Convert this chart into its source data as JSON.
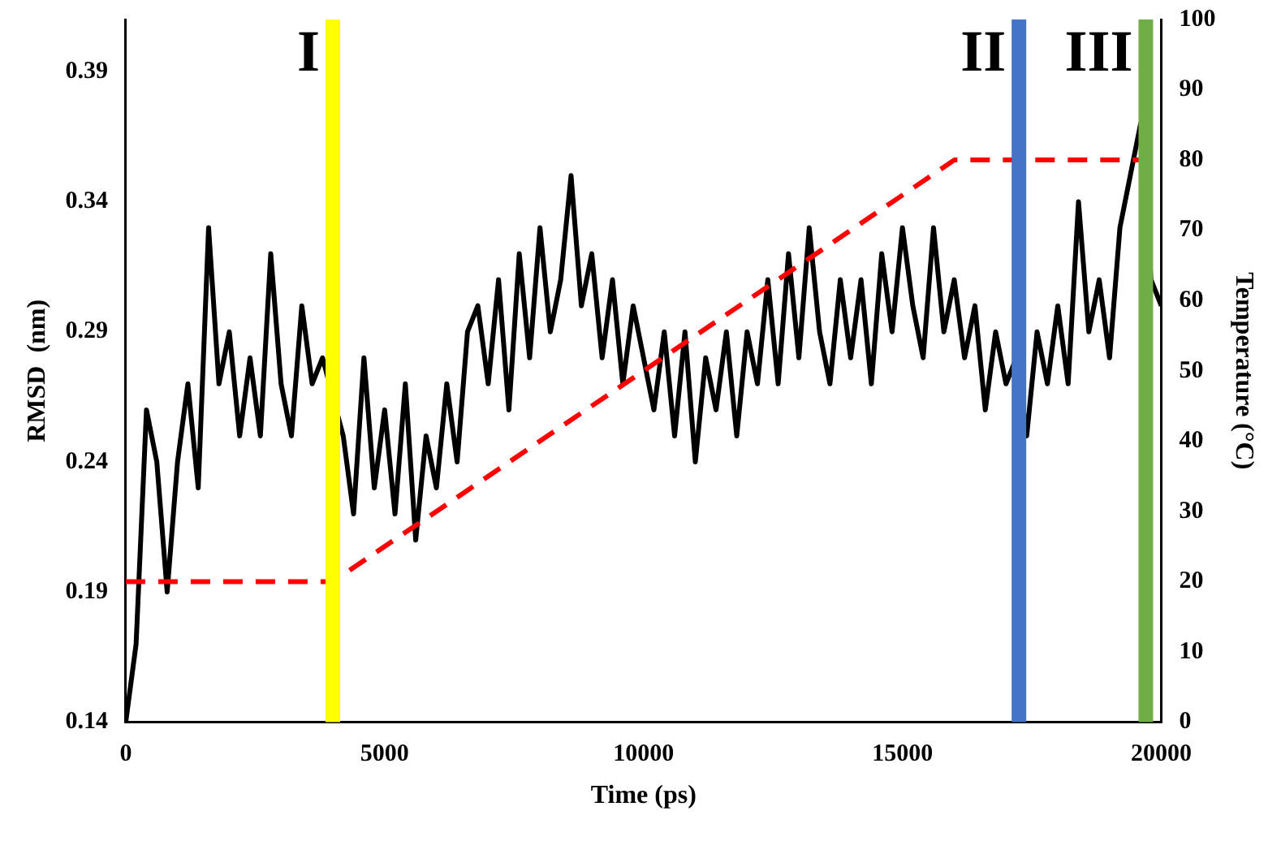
{
  "chart_data": {
    "type": "line",
    "xlabel": "Time (ps)",
    "ylabel": "RMSD  (nm)",
    "y2label": "Temperature (°C)",
    "x": [
      0,
      200,
      400,
      600,
      800,
      1000,
      1200,
      1400,
      1600,
      1800,
      2000,
      2200,
      2400,
      2600,
      2800,
      3000,
      3200,
      3400,
      3600,
      3800,
      4000,
      4200,
      4400,
      4600,
      4800,
      5000,
      5200,
      5400,
      5600,
      5800,
      6000,
      6200,
      6400,
      6600,
      6800,
      7000,
      7200,
      7400,
      7600,
      7800,
      8000,
      8200,
      8400,
      8600,
      8800,
      9000,
      9200,
      9400,
      9600,
      9800,
      10000,
      10200,
      10400,
      10600,
      10800,
      11000,
      11200,
      11400,
      11600,
      11800,
      12000,
      12200,
      12400,
      12600,
      12800,
      13000,
      13200,
      13400,
      13600,
      13800,
      14000,
      14200,
      14400,
      14600,
      14800,
      15000,
      15200,
      15400,
      15600,
      15800,
      16000,
      16200,
      16400,
      16600,
      16800,
      17000,
      17200,
      17400,
      17600,
      17800,
      18000,
      18200,
      18400,
      18600,
      18800,
      19000,
      19200,
      19400,
      19600,
      19800,
      20000
    ],
    "series": [
      {
        "color": "#000000",
        "values": [
          0.14,
          0.17,
          0.26,
          0.24,
          0.19,
          0.24,
          0.27,
          0.23,
          0.33,
          0.27,
          0.29,
          0.25,
          0.28,
          0.25,
          0.32,
          0.27,
          0.25,
          0.3,
          0.27,
          0.28,
          null,
          0.25,
          0.22,
          0.28,
          0.23,
          0.26,
          0.22,
          0.27,
          0.21,
          0.25,
          0.23,
          0.27,
          0.24,
          0.29,
          0.3,
          0.27,
          0.31,
          0.26,
          0.32,
          0.28,
          0.33,
          0.29,
          0.31,
          0.35,
          0.3,
          0.32,
          0.28,
          0.31,
          0.27,
          0.3,
          0.28,
          0.26,
          0.29,
          0.25,
          0.29,
          0.24,
          0.28,
          0.26,
          0.29,
          0.25,
          0.29,
          0.27,
          0.31,
          0.27,
          0.32,
          0.28,
          0.33,
          0.29,
          0.27,
          0.31,
          0.28,
          0.31,
          0.27,
          0.32,
          0.29,
          0.33,
          0.3,
          0.28,
          0.33,
          0.29,
          0.31,
          0.28,
          0.3,
          0.26,
          0.29,
          0.27,
          0.28,
          0.25,
          0.29,
          0.27,
          0.3,
          0.27,
          0.34,
          0.29,
          0.31,
          0.28,
          0.33,
          0.35,
          0.37,
          0.31,
          0.3
        ]
      },
      {
        "axis": "y2",
        "color": "#ff0000",
        "line_style": "dashed",
        "x": [
          0,
          4000,
          16000,
          20000
        ],
        "values": [
          20,
          20,
          80,
          80
        ]
      }
    ],
    "xlim": [
      0,
      20000
    ],
    "xticks": [
      0,
      5000,
      10000,
      15000,
      20000
    ],
    "ylim": [
      0.14,
      0.41
    ],
    "yticks": [
      0.14,
      0.19,
      0.24,
      0.29,
      0.34,
      0.39
    ],
    "y2lim": [
      0,
      100
    ],
    "y2ticks": [
      0,
      10,
      20,
      30,
      40,
      50,
      60,
      70,
      80,
      90,
      100
    ],
    "ref_lines": [
      {
        "axis": "x",
        "value": 4000,
        "label": "I",
        "color": "#ffff00"
      },
      {
        "axis": "x",
        "value": 17250,
        "label": "II",
        "color": "#4472c4"
      },
      {
        "axis": "x",
        "value": 19700,
        "label": "III",
        "color": "#70ad47"
      }
    ],
    "grid": false,
    "legend": false,
    "marker": "none",
    "line_style": "solid"
  }
}
